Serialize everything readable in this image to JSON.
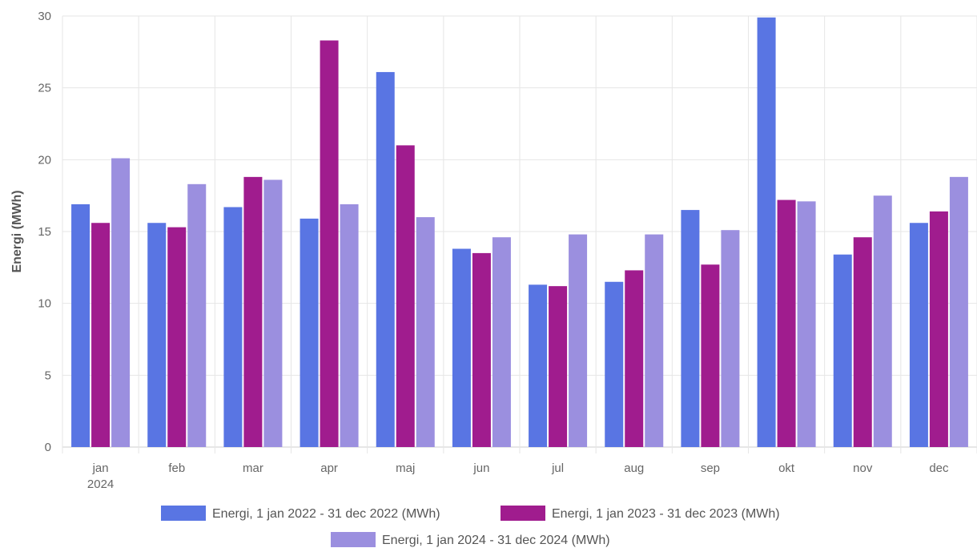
{
  "chart_data": {
    "type": "bar",
    "categories": [
      "jan",
      "feb",
      "mar",
      "apr",
      "maj",
      "jun",
      "jul",
      "aug",
      "sep",
      "okt",
      "nov",
      "dec"
    ],
    "first_category_sublabel": "2024",
    "ylabel": "Energi (MWh)",
    "ylim": [
      0,
      30
    ],
    "yticks": [
      0,
      5,
      10,
      15,
      20,
      25,
      30
    ],
    "grid": true,
    "legend_position": "bottom",
    "series": [
      {
        "name": "Energi, 1 jan 2022 - 31 dec 2022 (MWh)",
        "color": "#5975e3",
        "values": [
          16.9,
          15.6,
          16.7,
          15.9,
          26.1,
          13.8,
          11.3,
          11.5,
          16.5,
          29.9,
          13.4,
          15.6
        ]
      },
      {
        "name": "Energi, 1 jan 2023 - 31 dec 2023 (MWh)",
        "color": "#a01c8e",
        "values": [
          15.6,
          15.3,
          18.8,
          28.3,
          21.0,
          13.5,
          11.2,
          12.3,
          12.7,
          17.2,
          14.6,
          16.4
        ]
      },
      {
        "name": "Energi, 1 jan 2024 - 31 dec 2024 (MWh)",
        "color": "#9b8fdf",
        "values": [
          20.1,
          18.3,
          18.6,
          16.9,
          16.0,
          14.6,
          14.8,
          14.8,
          15.1,
          17.1,
          17.5,
          18.8
        ]
      }
    ]
  }
}
